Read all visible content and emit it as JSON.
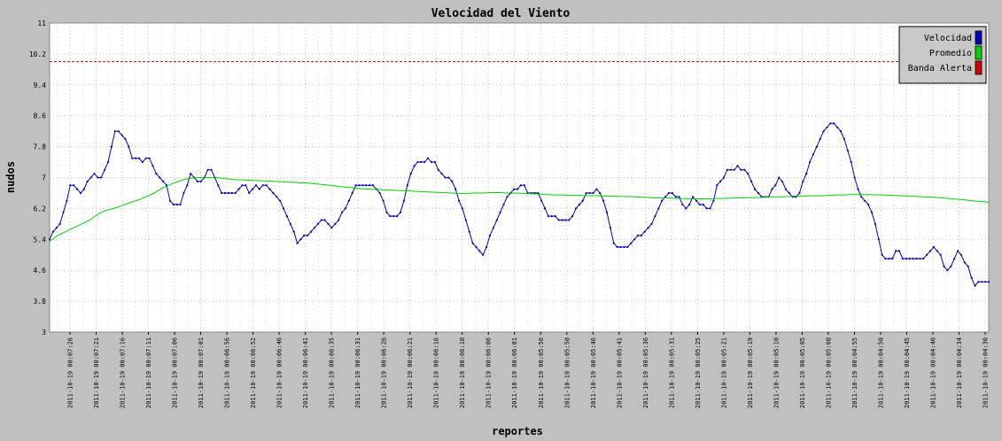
{
  "chart_data": {
    "type": "line",
    "title": "Velocidad del Viento",
    "xlabel": "reportes",
    "ylabel": "nudos",
    "ylim": [
      3,
      11
    ],
    "yticks": [
      "3",
      "3.8",
      "4.6",
      "5.4",
      "6.2",
      "7",
      "7.8",
      "8.6",
      "9.4",
      "10.2",
      "11"
    ],
    "grid": true,
    "legend_position": "top-right",
    "x_tick_labels": [
      "2011-10-19 00:07:26",
      "2011-10-19 00:07:21",
      "2011-10-19 00:07:16",
      "2011-10-19 00:07:11",
      "2011-10-19 00:07:06",
      "2011-10-19 00:07:01",
      "2011-10-19 00:06:56",
      "2011-10-19 00:06:52",
      "2011-10-19 00:06:46",
      "2011-10-19 00:06:41",
      "2011-10-19 00:06:35",
      "2011-10-19 00:06:31",
      "2011-10-19 00:06:26",
      "2011-10-19 00:06:21",
      "2011-10-19 00:06:16",
      "2011-10-19 00:06:10",
      "2011-10-19 00:06:06",
      "2011-10-19 00:06:01",
      "2011-10-19 00:05:56",
      "2011-10-19 00:05:50",
      "2011-10-19 00:05:46",
      "2011-10-19 00:05:41",
      "2011-10-19 00:05:36",
      "2011-10-19 00:05:31",
      "2011-10-19 00:05:25",
      "2011-10-19 00:05:21",
      "2011-10-19 00:05:19",
      "2011-10-19 00:05:10",
      "2011-10-19 00:05:05",
      "2011-10-19 00:05:00",
      "2011-10-19 00:04:55",
      "2011-10-19 00:04:50",
      "2011-10-19 00:04:45",
      "2011-10-19 00:04:40",
      "2011-10-19 00:04:34",
      "2011-10-19 00:04:30"
    ],
    "series": [
      {
        "name": "Velocidad",
        "color": "#0000b4",
        "values": [
          5.4,
          5.6,
          5.7,
          5.8,
          6.1,
          6.4,
          6.8,
          6.8,
          6.7,
          6.6,
          6.7,
          6.9,
          7.0,
          7.1,
          7.0,
          7.0,
          7.2,
          7.4,
          7.8,
          8.2,
          8.2,
          8.1,
          8.0,
          7.8,
          7.5,
          7.5,
          7.5,
          7.4,
          7.5,
          7.5,
          7.3,
          7.1,
          7.0,
          6.9,
          6.8,
          6.4,
          6.3,
          6.3,
          6.3,
          6.6,
          6.8,
          7.1,
          7.0,
          6.9,
          6.9,
          7.0,
          7.2,
          7.2,
          7.0,
          6.8,
          6.6,
          6.6,
          6.6,
          6.6,
          6.6,
          6.7,
          6.8,
          6.8,
          6.6,
          6.7,
          6.8,
          6.7,
          6.8,
          6.8,
          6.7,
          6.6,
          6.5,
          6.4,
          6.2,
          6.0,
          5.8,
          5.6,
          5.3,
          5.4,
          5.5,
          5.5,
          5.6,
          5.7,
          5.8,
          5.9,
          5.9,
          5.8,
          5.7,
          5.8,
          5.9,
          6.1,
          6.2,
          6.4,
          6.6,
          6.8,
          6.8,
          6.8,
          6.8,
          6.8,
          6.8,
          6.7,
          6.6,
          6.4,
          6.1,
          6.0,
          6.0,
          6.0,
          6.1,
          6.4,
          6.8,
          7.1,
          7.3,
          7.4,
          7.4,
          7.4,
          7.5,
          7.4,
          7.4,
          7.2,
          7.1,
          7.0,
          7.0,
          6.9,
          6.7,
          6.4,
          6.2,
          5.9,
          5.6,
          5.3,
          5.2,
          5.1,
          5.0,
          5.2,
          5.5,
          5.7,
          5.9,
          6.1,
          6.3,
          6.5,
          6.6,
          6.7,
          6.7,
          6.8,
          6.8,
          6.6,
          6.6,
          6.6,
          6.6,
          6.4,
          6.2,
          6.0,
          6.0,
          6.0,
          5.9,
          5.9,
          5.9,
          5.9,
          6.0,
          6.2,
          6.3,
          6.4,
          6.6,
          6.6,
          6.6,
          6.7,
          6.6,
          6.4,
          6.1,
          5.7,
          5.3,
          5.2,
          5.2,
          5.2,
          5.2,
          5.3,
          5.4,
          5.5,
          5.5,
          5.6,
          5.7,
          5.8,
          6.0,
          6.2,
          6.4,
          6.5,
          6.6,
          6.6,
          6.5,
          6.5,
          6.3,
          6.2,
          6.3,
          6.5,
          6.4,
          6.3,
          6.3,
          6.2,
          6.2,
          6.4,
          6.8,
          6.9,
          7.0,
          7.2,
          7.2,
          7.2,
          7.3,
          7.2,
          7.2,
          7.1,
          6.9,
          6.7,
          6.6,
          6.5,
          6.5,
          6.5,
          6.7,
          6.8,
          7.0,
          6.9,
          6.7,
          6.6,
          6.5,
          6.5,
          6.6,
          6.9,
          7.1,
          7.4,
          7.6,
          7.8,
          8.0,
          8.2,
          8.3,
          8.4,
          8.4,
          8.3,
          8.2,
          8.0,
          7.7,
          7.4,
          7.0,
          6.7,
          6.5,
          6.4,
          6.3,
          6.1,
          5.8,
          5.4,
          5.0,
          4.9,
          4.9,
          4.9,
          5.1,
          5.1,
          4.9,
          4.9,
          4.9,
          4.9,
          4.9,
          4.9,
          4.9,
          5.0,
          5.1,
          5.2,
          5.1,
          5.0,
          4.7,
          4.6,
          4.7,
          4.9,
          5.1,
          5.0,
          4.8,
          4.7,
          4.4,
          4.2,
          4.3,
          4.3,
          4.3,
          4.3
        ]
      },
      {
        "name": "Promedio",
        "color": "#00d200",
        "values": [
          5.35,
          5.5,
          5.6,
          5.7,
          5.8,
          5.9,
          6.05,
          6.15,
          6.2,
          6.27,
          6.35,
          6.42,
          6.5,
          6.6,
          6.72,
          6.82,
          6.9,
          6.96,
          7.0,
          7.0,
          7.0,
          6.99,
          6.97,
          6.95,
          6.94,
          6.93,
          6.92,
          6.91,
          6.9,
          6.89,
          6.88,
          6.87,
          6.86,
          6.84,
          6.82,
          6.8,
          6.77,
          6.75,
          6.73,
          6.71,
          6.7,
          6.69,
          6.68,
          6.67,
          6.66,
          6.65,
          6.64,
          6.63,
          6.62,
          6.61,
          6.6,
          6.59,
          6.59,
          6.6,
          6.6,
          6.61,
          6.61,
          6.6,
          6.6,
          6.59,
          6.58,
          6.57,
          6.56,
          6.55,
          6.55,
          6.54,
          6.54,
          6.53,
          6.53,
          6.52,
          6.52,
          6.51,
          6.51,
          6.5,
          6.49,
          6.48,
          6.47,
          6.47,
          6.46,
          6.46,
          6.45,
          6.45,
          6.45,
          6.46,
          6.46,
          6.47,
          6.47,
          6.48,
          6.48,
          6.49,
          6.5,
          6.5,
          6.51,
          6.52,
          6.52,
          6.53,
          6.53,
          6.54,
          6.55,
          6.55,
          6.56,
          6.56,
          6.56,
          6.55,
          6.55,
          6.54,
          6.53,
          6.52,
          6.51,
          6.5,
          6.49,
          6.48,
          6.46,
          6.44,
          6.42,
          6.4,
          6.38,
          6.36
        ]
      },
      {
        "name": "Banda Alerta",
        "color": "#d20000",
        "values": [
          10.0,
          10.0
        ]
      }
    ]
  }
}
